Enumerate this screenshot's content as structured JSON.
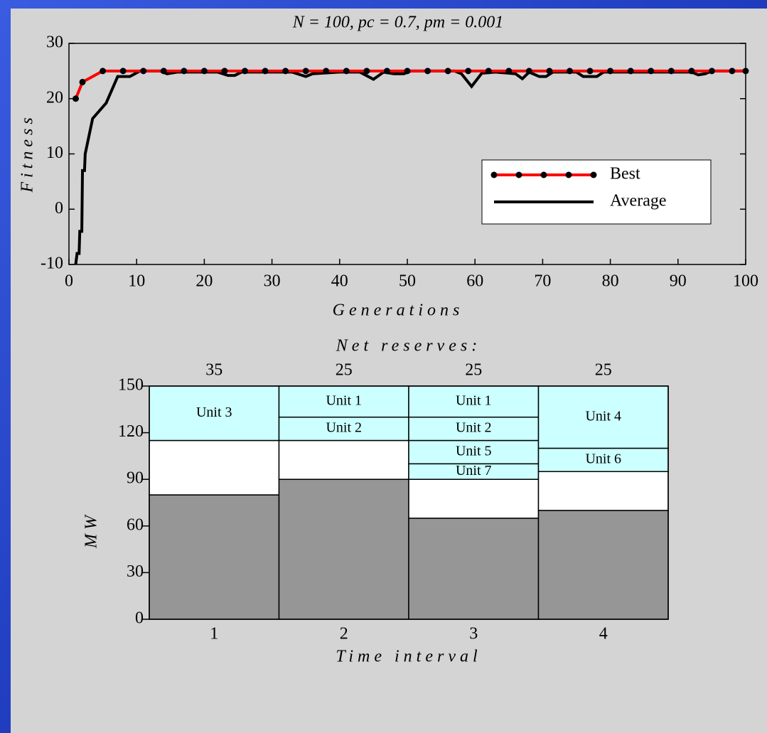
{
  "chart_data": [
    {
      "type": "line",
      "title": "N = 100,  pc = 0.7,  pm = 0.001",
      "xlabel": "Generations",
      "ylabel": "Fitness",
      "xlim": [
        0,
        100
      ],
      "xticks": [
        0,
        10,
        20,
        30,
        40,
        50,
        60,
        70,
        80,
        90,
        100
      ],
      "ylim": [
        -10,
        30
      ],
      "yticks": [
        -10,
        0,
        10,
        20,
        30
      ],
      "series": [
        {
          "name": "Best",
          "color": "#ff0000",
          "markers": true,
          "x": [
            1,
            2,
            5,
            8,
            11,
            14,
            17,
            20,
            23,
            26,
            29,
            32,
            35,
            38,
            41,
            44,
            47,
            50,
            53,
            56,
            59,
            62,
            65,
            68,
            71,
            74,
            77,
            80,
            83,
            86,
            89,
            92,
            95,
            98,
            100
          ],
          "values": [
            20,
            23,
            25,
            25,
            25,
            25,
            25,
            25,
            25,
            25,
            25,
            25,
            25,
            25,
            25,
            25,
            25,
            25,
            25,
            25,
            25,
            25,
            25,
            25,
            25,
            25,
            25,
            25,
            25,
            25,
            25,
            25,
            25,
            25,
            25
          ]
        },
        {
          "name": "Average",
          "color": "#000000",
          "markers": false,
          "x": [
            1,
            1.2,
            1.5,
            1.6,
            1.9,
            2,
            2.3,
            2.4,
            3.5,
            5.5,
            7.2,
            9,
            10.5,
            13.5,
            14.5,
            16,
            22,
            23.5,
            24.5,
            25.5,
            33,
            35,
            36,
            40,
            43,
            45,
            46.5,
            48,
            49.5,
            50.5,
            57,
            58,
            59.5,
            61,
            63,
            66,
            67,
            68,
            69.5,
            70.5,
            71.5,
            75,
            76,
            78,
            79,
            92,
            93,
            94,
            95,
            100
          ],
          "values": [
            -10,
            -8,
            -8,
            -4,
            -4,
            7,
            7,
            10,
            16.4,
            19.2,
            24,
            24,
            25,
            25,
            24.5,
            24.8,
            24.8,
            24.2,
            24.2,
            24.8,
            24.8,
            24,
            24.5,
            24.8,
            24.8,
            23.5,
            24.8,
            24.5,
            24.5,
            25,
            25,
            24.5,
            22.2,
            24.6,
            24.8,
            24.5,
            23.6,
            24.8,
            24,
            24,
            24.8,
            24.8,
            24,
            24,
            24.8,
            24.8,
            24.3,
            24.5,
            25,
            25
          ]
        }
      ]
    },
    {
      "type": "stacked-bar",
      "xlabel": "Time interval",
      "ylabel": "MW",
      "categories": [
        "1",
        "2",
        "3",
        "4"
      ],
      "ylim": [
        0,
        150
      ],
      "yticks": [
        0,
        30,
        60,
        90,
        120,
        150
      ],
      "load": {
        "color": "#969696",
        "values": [
          80,
          90,
          65,
          70
        ]
      },
      "net_reserves": {
        "label": "Net reserves:",
        "color": "#ffffff",
        "values": [
          35,
          25,
          25,
          25
        ]
      },
      "unit_color": "#ccffff",
      "units": [
        [
          {
            "name": "Unit 3",
            "value": 35
          }
        ],
        [
          {
            "name": "Unit 2",
            "value": 15
          },
          {
            "name": "Unit 1",
            "value": 20
          }
        ],
        [
          {
            "name": "Unit 7",
            "value": 10
          },
          {
            "name": "Unit 5",
            "value": 15
          },
          {
            "name": "Unit 2",
            "value": 15
          },
          {
            "name": "Unit 1",
            "value": 20
          }
        ],
        [
          {
            "name": "Unit 6",
            "value": 15
          },
          {
            "name": "Unit 4",
            "value": 40
          }
        ]
      ]
    }
  ]
}
